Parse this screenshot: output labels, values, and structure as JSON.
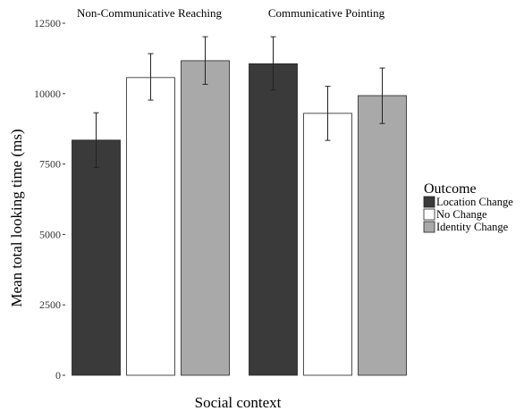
{
  "chart_data": {
    "type": "bar",
    "xlabel": "Social context",
    "ylabel": "Mean total looking time (ms)",
    "ylim": [
      0,
      12500
    ],
    "yticks": [
      0,
      2500,
      5000,
      7500,
      10000,
      12500
    ],
    "ytick_labels": [
      "0",
      "2500",
      "5000",
      "7500",
      "10000",
      "12500"
    ],
    "panels": [
      {
        "label": "Non-Communicative Reaching",
        "values": [
          8350,
          10570,
          11170
        ],
        "error_low": [
          7380,
          9770,
          10330
        ],
        "error_high": [
          9320,
          11420,
          12020
        ]
      },
      {
        "label": "Communicative Pointing",
        "values": [
          11060,
          9300,
          9930
        ],
        "error_low": [
          10130,
          8340,
          8940
        ],
        "error_high": [
          12020,
          10260,
          10910
        ]
      }
    ],
    "series": [
      {
        "name": "Location Change",
        "color": "#3a3a3a"
      },
      {
        "name": "No Change",
        "color": "#ffffff"
      },
      {
        "name": "Identity Change",
        "color": "#a9a9a9"
      }
    ],
    "legend": {
      "title": "Outcome",
      "position": "right"
    },
    "grid": false
  }
}
